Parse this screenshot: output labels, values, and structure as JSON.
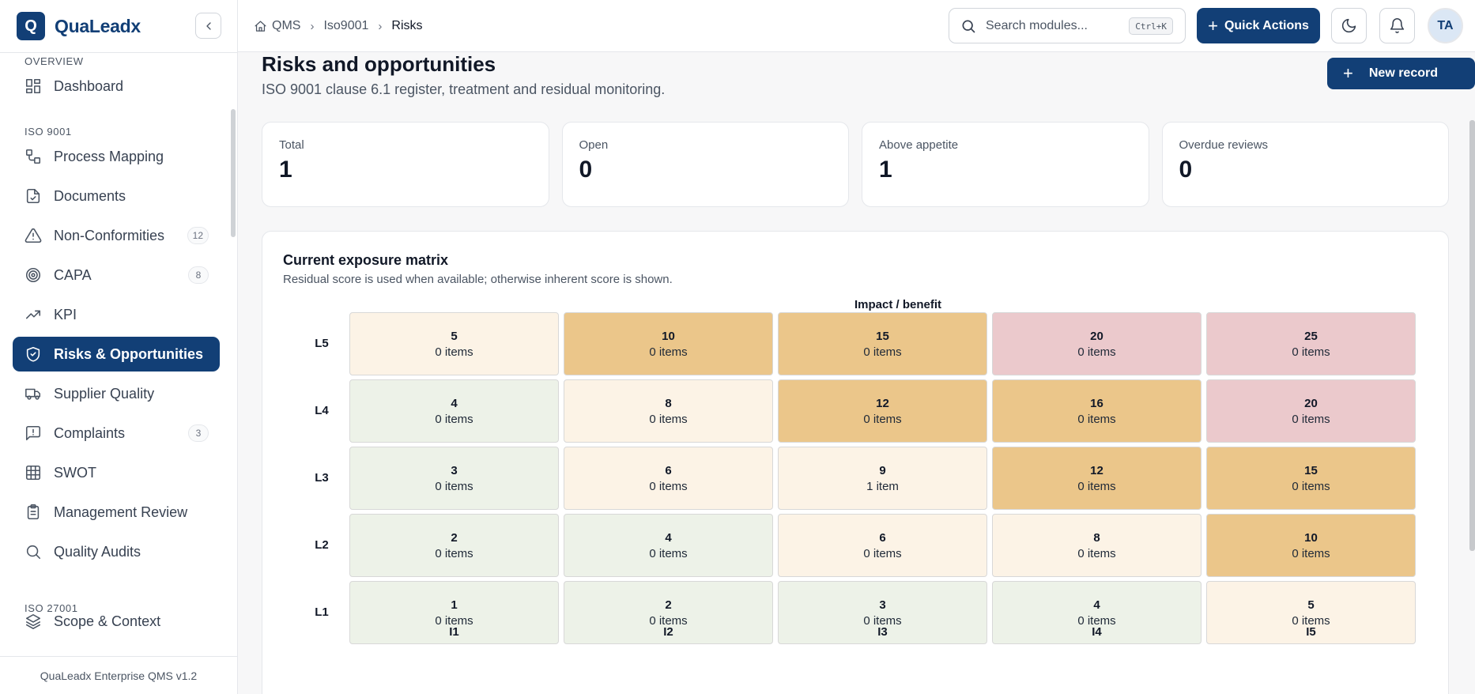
{
  "brand": {
    "logo_letter": "Q",
    "name": "QuaLeadx"
  },
  "sidebar": {
    "sections": [
      {
        "label": "OVERVIEW"
      },
      {
        "label": "ISO 9001"
      },
      {
        "label": "ISO 27001"
      }
    ],
    "items": [
      {
        "label": "Dashboard",
        "icon": "dashboard-icon"
      },
      {
        "label": "Process Mapping",
        "icon": "process-icon"
      },
      {
        "label": "Documents",
        "icon": "document-icon"
      },
      {
        "label": "Non-Conformities",
        "icon": "warning-icon",
        "badge": "12"
      },
      {
        "label": "CAPA",
        "icon": "target-icon",
        "badge": "8"
      },
      {
        "label": "KPI",
        "icon": "trend-icon"
      },
      {
        "label": "Risks & Opportunities",
        "icon": "shield-icon",
        "active": true
      },
      {
        "label": "Supplier Quality",
        "icon": "truck-icon"
      },
      {
        "label": "Complaints",
        "icon": "message-alert-icon",
        "badge": "3"
      },
      {
        "label": "SWOT",
        "icon": "grid-icon"
      },
      {
        "label": "Management Review",
        "icon": "clipboard-icon"
      },
      {
        "label": "Quality Audits",
        "icon": "search-icon"
      },
      {
        "label": "Scope & Context",
        "icon": "layers-icon"
      }
    ],
    "footer": "QuaLeadx Enterprise QMS v1.2"
  },
  "breadcrumb": {
    "items": [
      "QMS",
      "Iso9001",
      "Risks"
    ]
  },
  "search": {
    "placeholder": "Search modules...",
    "shortcut": "Ctrl+K"
  },
  "topbar": {
    "quick_actions_label": "Quick Actions",
    "avatar_initials": "TA"
  },
  "page": {
    "title": "Risks and opportunities",
    "subtitle": "ISO 9001 clause 6.1 register, treatment and residual monitoring.",
    "new_record_label": "New record"
  },
  "stats": [
    {
      "label": "Total",
      "value": "1"
    },
    {
      "label": "Open",
      "value": "0"
    },
    {
      "label": "Above appetite",
      "value": "1"
    },
    {
      "label": "Overdue reviews",
      "value": "0"
    }
  ],
  "matrix": {
    "title": "Current exposure matrix",
    "subtitle": "Residual score is used when available; otherwise inherent score is shown.",
    "axis_label": "Impact / benefit",
    "columns": [
      "I1",
      "I2",
      "I3",
      "I4",
      "I5"
    ],
    "colors": {
      "low": "#edf2e8",
      "medium": "#fcf3e6",
      "high": "#ebc68a",
      "critical": "#ebc9cc"
    },
    "rows": [
      {
        "label": "L5",
        "cells": [
          {
            "score": "5",
            "count": "0 items",
            "level": "medium"
          },
          {
            "score": "10",
            "count": "0 items",
            "level": "high"
          },
          {
            "score": "15",
            "count": "0 items",
            "level": "high"
          },
          {
            "score": "20",
            "count": "0 items",
            "level": "critical"
          },
          {
            "score": "25",
            "count": "0 items",
            "level": "critical"
          }
        ]
      },
      {
        "label": "L4",
        "cells": [
          {
            "score": "4",
            "count": "0 items",
            "level": "low"
          },
          {
            "score": "8",
            "count": "0 items",
            "level": "medium"
          },
          {
            "score": "12",
            "count": "0 items",
            "level": "high"
          },
          {
            "score": "16",
            "count": "0 items",
            "level": "high"
          },
          {
            "score": "20",
            "count": "0 items",
            "level": "critical"
          }
        ]
      },
      {
        "label": "L3",
        "cells": [
          {
            "score": "3",
            "count": "0 items",
            "level": "low"
          },
          {
            "score": "6",
            "count": "0 items",
            "level": "medium"
          },
          {
            "score": "9",
            "count": "1 item",
            "level": "medium"
          },
          {
            "score": "12",
            "count": "0 items",
            "level": "high"
          },
          {
            "score": "15",
            "count": "0 items",
            "level": "high"
          }
        ]
      },
      {
        "label": "L2",
        "cells": [
          {
            "score": "2",
            "count": "0 items",
            "level": "low"
          },
          {
            "score": "4",
            "count": "0 items",
            "level": "low"
          },
          {
            "score": "6",
            "count": "0 items",
            "level": "medium"
          },
          {
            "score": "8",
            "count": "0 items",
            "level": "medium"
          },
          {
            "score": "10",
            "count": "0 items",
            "level": "high"
          }
        ]
      },
      {
        "label": "L1",
        "cells": [
          {
            "score": "1",
            "count": "0 items",
            "level": "low"
          },
          {
            "score": "2",
            "count": "0 items",
            "level": "low"
          },
          {
            "score": "3",
            "count": "0 items",
            "level": "low"
          },
          {
            "score": "4",
            "count": "0 items",
            "level": "low"
          },
          {
            "score": "5",
            "count": "0 items",
            "level": "medium"
          }
        ]
      }
    ]
  }
}
